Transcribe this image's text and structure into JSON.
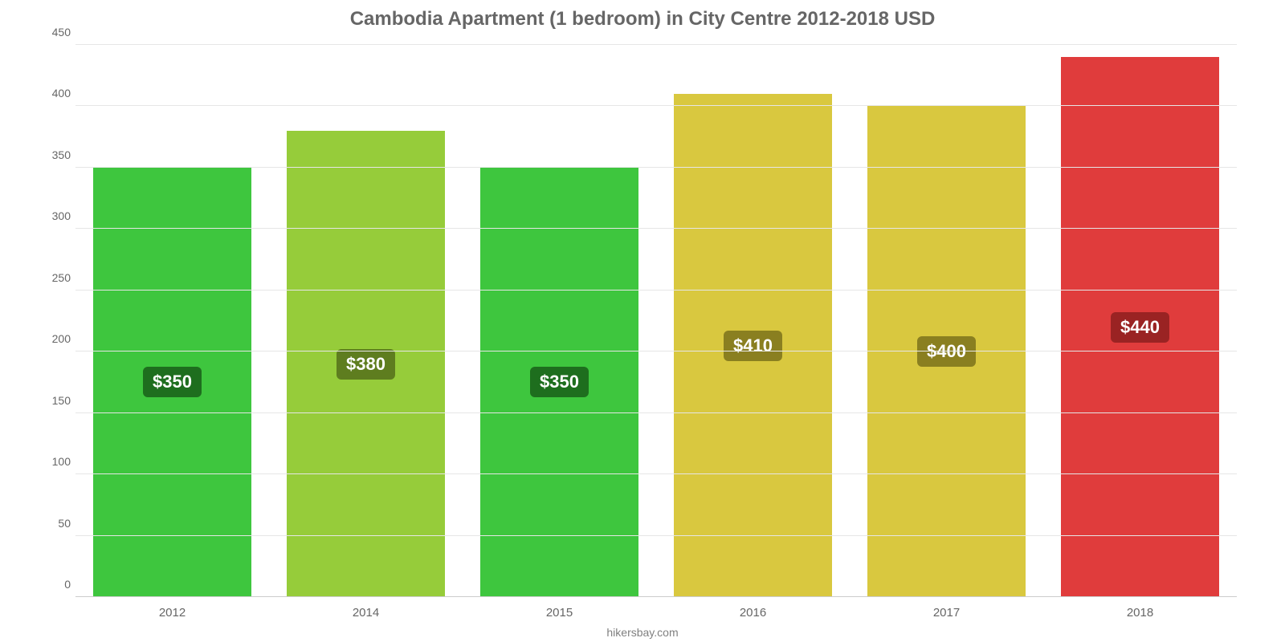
{
  "chart": {
    "type": "bar",
    "title": "Cambodia Apartment (1 bedroom) in City Centre 2012-2018 USD",
    "title_fontsize": 24,
    "title_color": "#666666",
    "source": "hikersbay.com",
    "source_color": "#808080",
    "background_color": "#ffffff",
    "grid_color": "#e6e6e6",
    "baseline_color": "#cccccc",
    "axis_label_color": "#666666",
    "ylim_min": 0,
    "ylim_max": 450,
    "ytick_step": 50,
    "yticks": [
      "0",
      "50",
      "100",
      "150",
      "200",
      "250",
      "300",
      "350",
      "400",
      "450"
    ],
    "bar_width_pct": 82,
    "value_label_fontsize": 22,
    "value_label_text_color": "#ffffff",
    "categories": [
      "2012",
      "2014",
      "2015",
      "2016",
      "2017",
      "2018"
    ],
    "values": [
      350,
      380,
      350,
      410,
      400,
      440
    ],
    "display_values": [
      "$350",
      "$380",
      "$350",
      "$410",
      "$400",
      "$440"
    ],
    "bar_colors": [
      "#3ec63e",
      "#96cc3a",
      "#3ec63e",
      "#d9c83f",
      "#d9c83f",
      "#e03c3c"
    ],
    "value_label_bg_colors": [
      "#1e6e1e",
      "#5e7d1f",
      "#1e6e1e",
      "#8a7f20",
      "#8a7f20",
      "#9a2323"
    ]
  }
}
